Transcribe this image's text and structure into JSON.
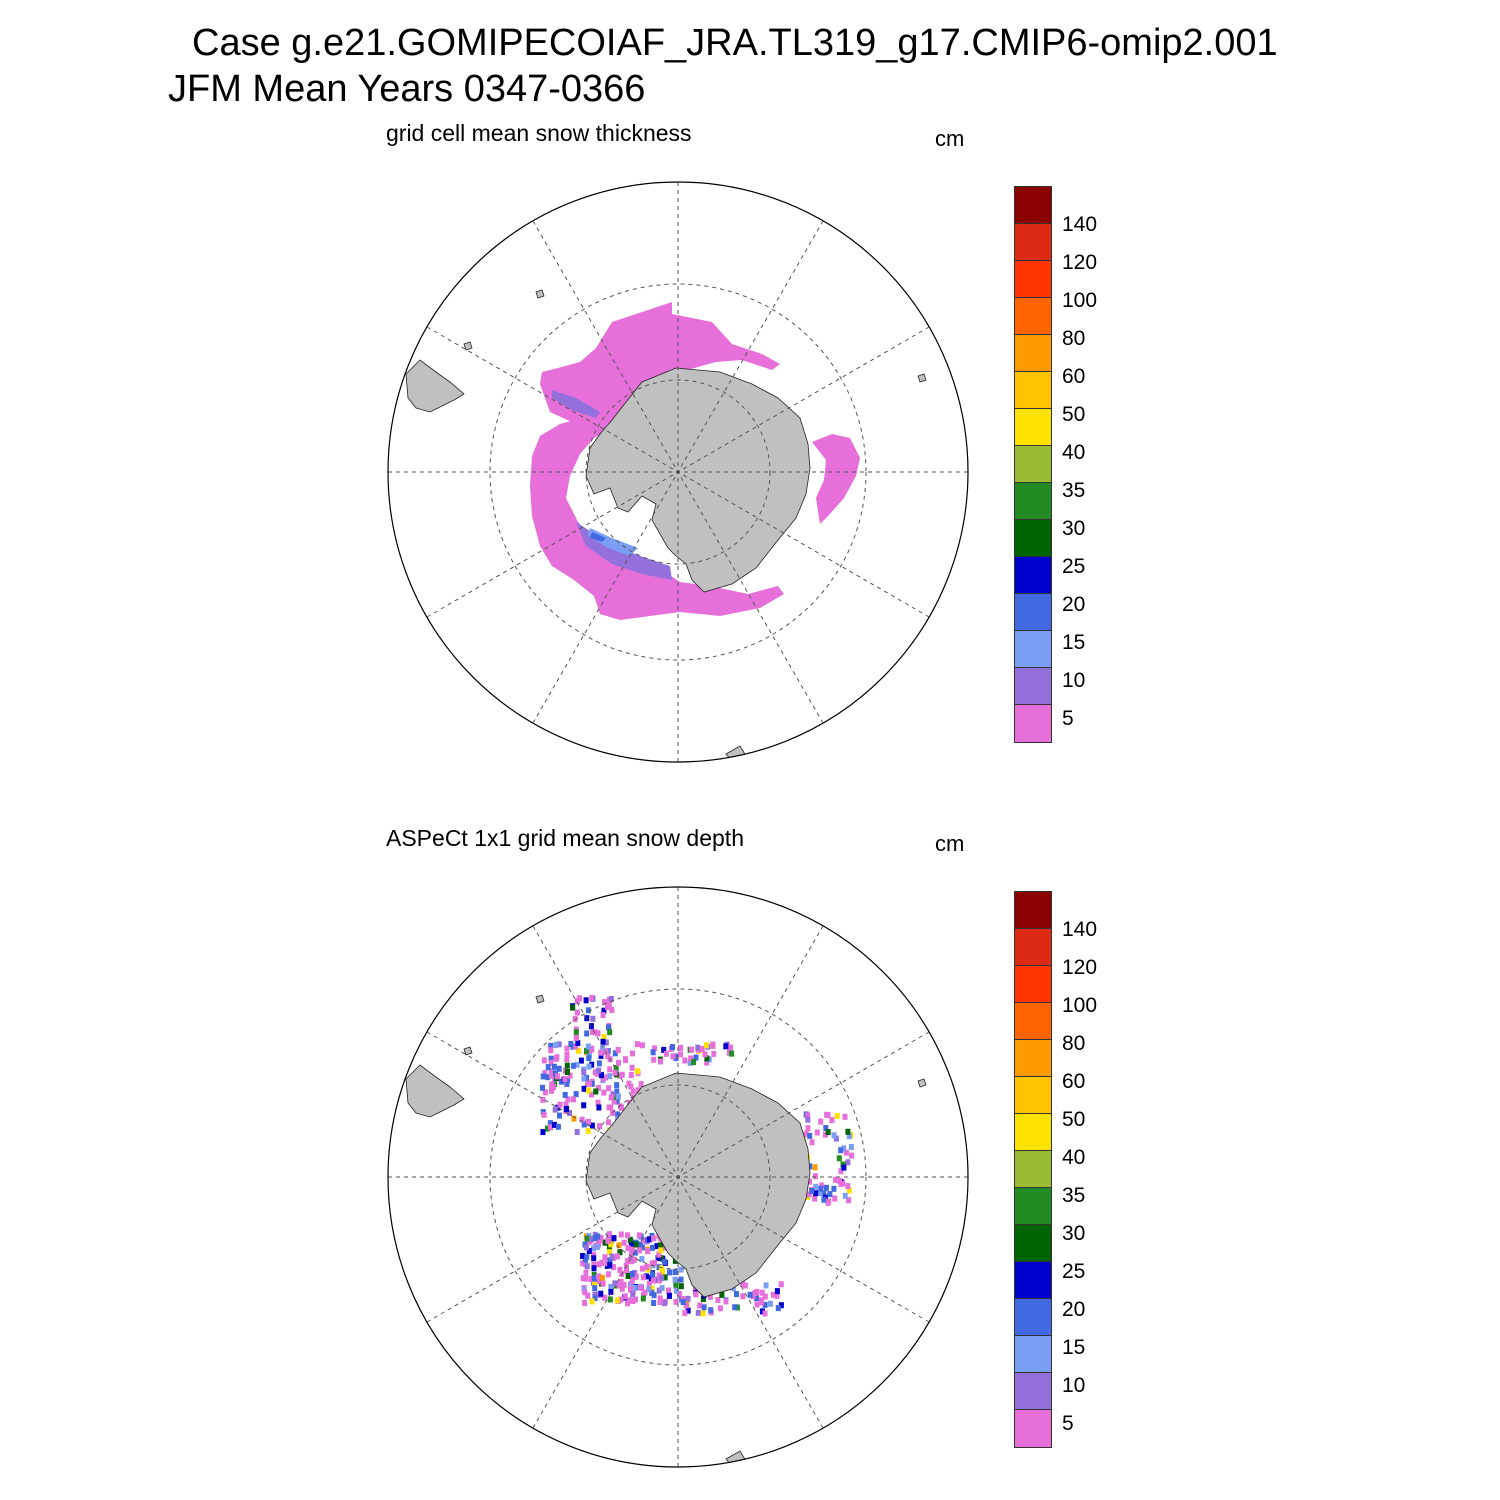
{
  "title_line1": "Case g.e21.GOMIPECOIAF_JRA.TL319_g17.CMIP6-omip2.001",
  "title_line2": "JFM Mean     Years 0347-0366",
  "colors": {
    "land": "#c0c0c0",
    "grid": "#555555",
    "levels": [
      "#e66fda",
      "#9370db",
      "#7b9ef5",
      "#4169e1",
      "#0000cd",
      "#006400",
      "#228b22",
      "#9abc32",
      "#ffe100",
      "#ffc300",
      "#ff9a00",
      "#ff6400",
      "#ff3300",
      "#dc2a14",
      "#8b0000"
    ]
  },
  "colorbar": {
    "units": "cm",
    "labels": [
      "5",
      "10",
      "15",
      "20",
      "25",
      "30",
      "35",
      "40",
      "50",
      "60",
      "80",
      "100",
      "120",
      "140"
    ]
  },
  "panels": [
    {
      "title": "grid cell mean snow thickness",
      "units": "cm",
      "type": "model"
    },
    {
      "title": "ASPeCt 1x1 grid mean snow depth",
      "units": "cm",
      "type": "obs"
    }
  ]
}
